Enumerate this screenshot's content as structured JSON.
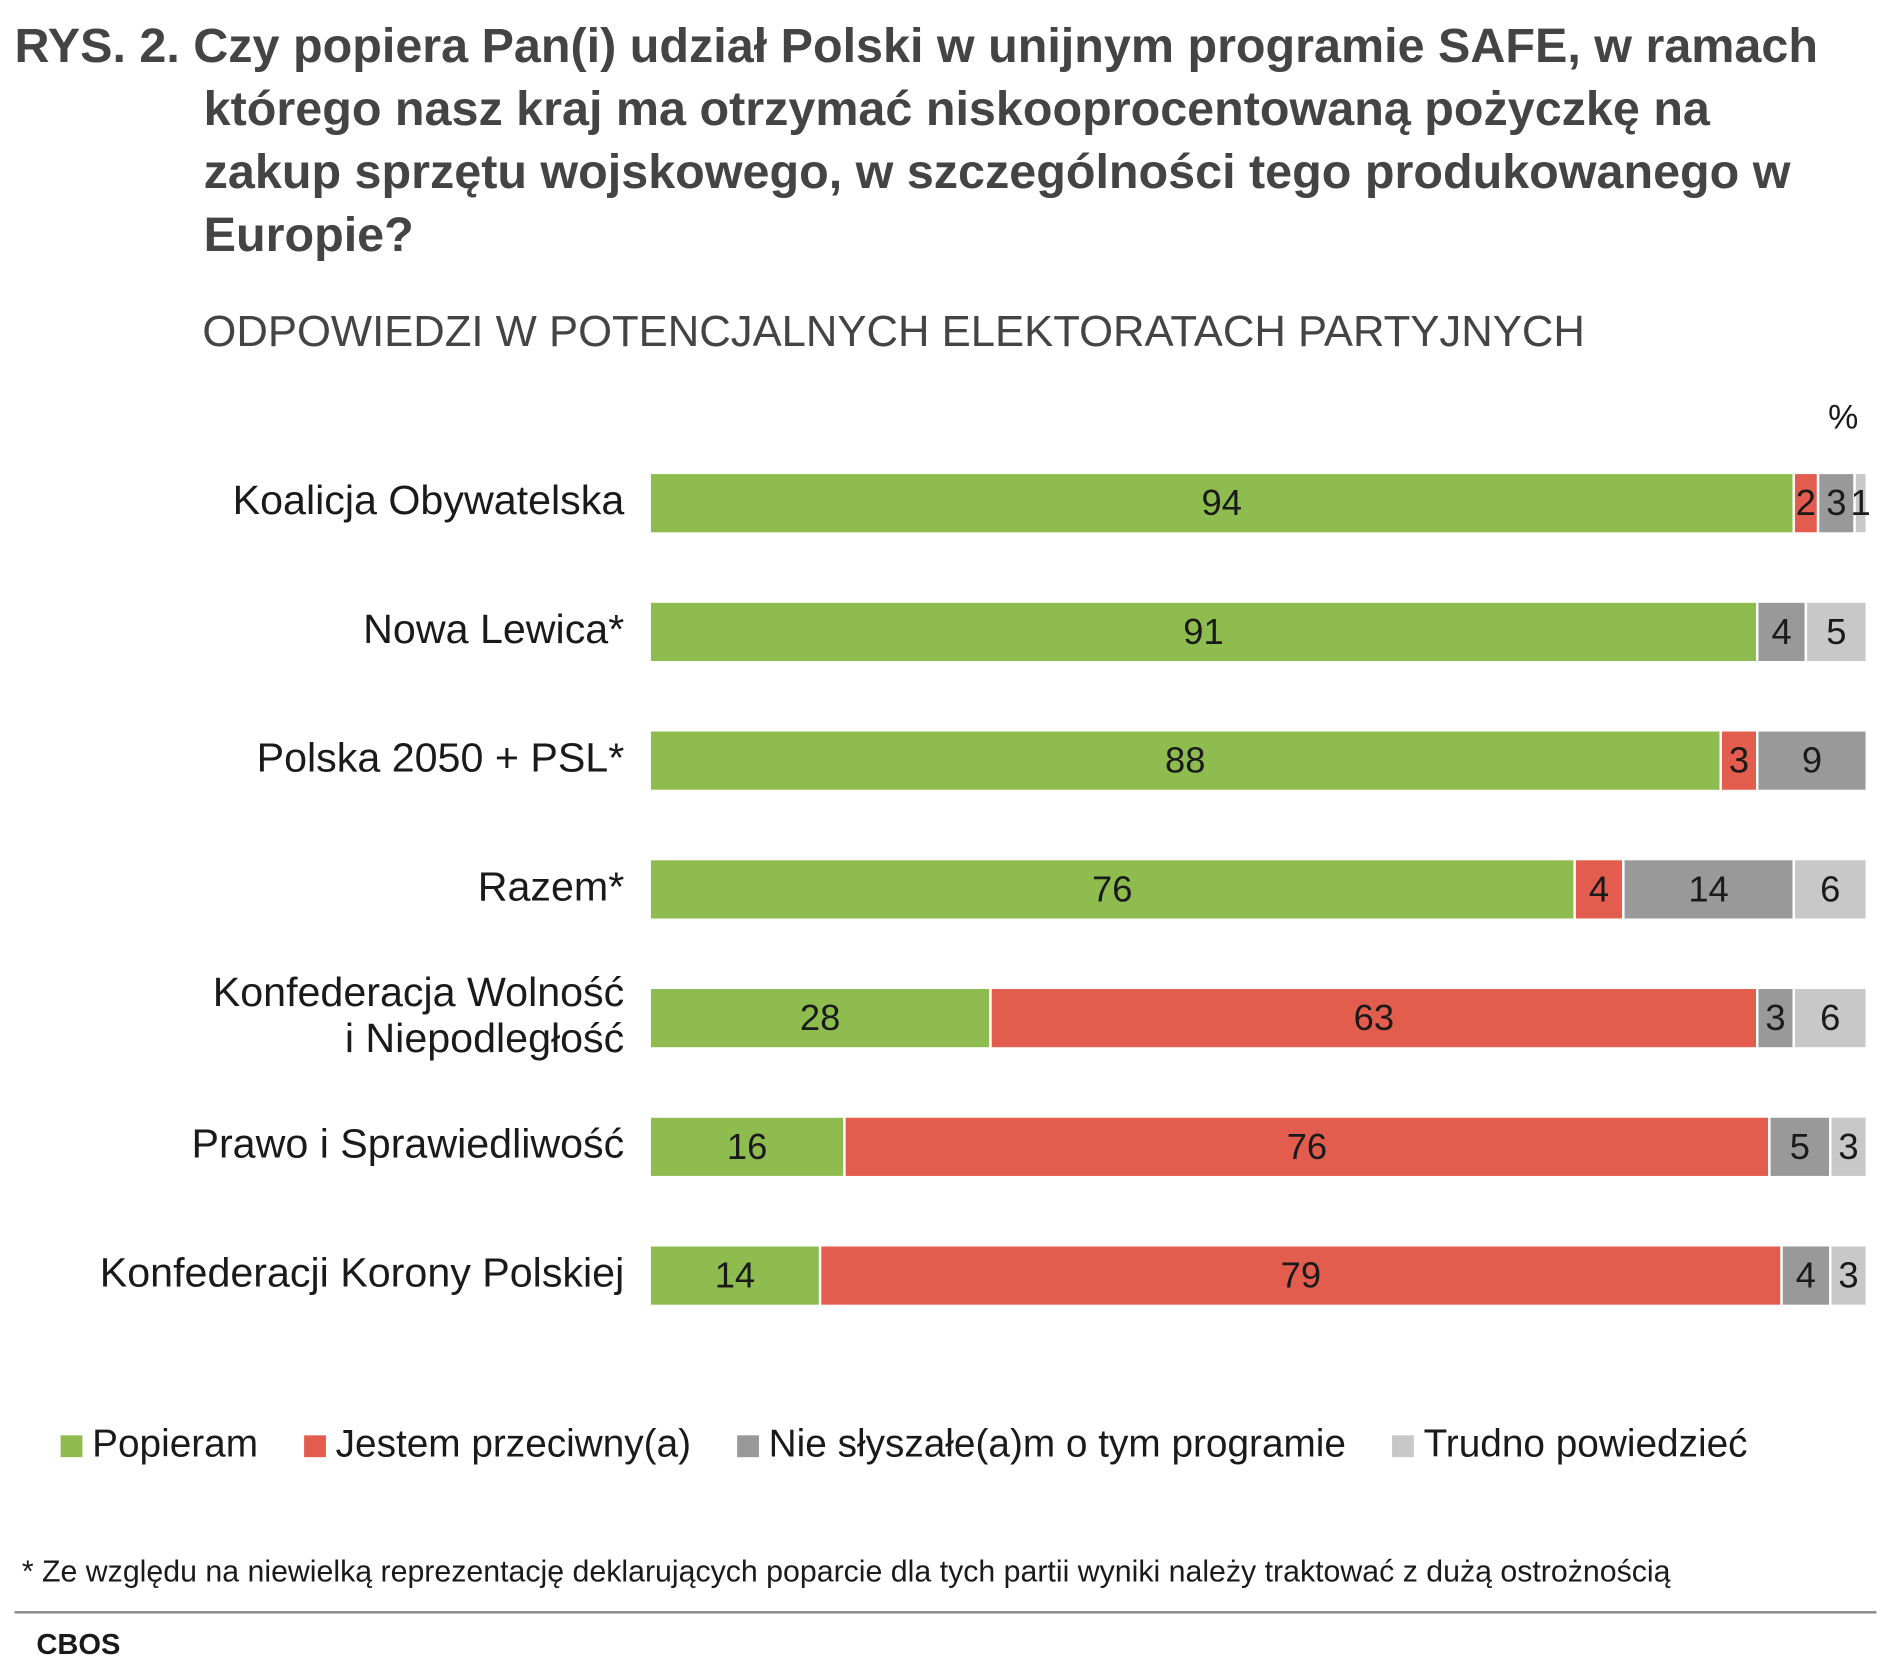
{
  "chart_data": {
    "type": "stacked-bar-horizontal",
    "title": "RYS. 2. Czy popiera Pan(i) udział Polski w unijnym programie SAFE, w ramach którego nasz kraj ma otrzymać niskooprocentowaną pożyczkę na zakup sprzętu wojskowego, w szczególności tego produkowanego w Europie?",
    "subtitle": "ODPOWIEDZI W POTENCJALNYCH ELEKTORATACH PARTYJNYCH",
    "unit_label": "%",
    "categories": [
      "Koalicja Obywatelska",
      "Nowa Lewica*",
      "Polska 2050 + PSL*",
      "Razem*",
      "Konfederacja Wolność\ni Niepodległość",
      "Prawo i Sprawiedliwość",
      "Konfederacji Korony Polskiej"
    ],
    "xlim": [
      0,
      100
    ],
    "series": [
      {
        "name": "Popieram",
        "color": "#8fbc4f",
        "values": [
          94,
          91,
          88,
          76,
          28,
          16,
          14
        ]
      },
      {
        "name": "Jestem przeciwny(a)",
        "color": "#e35d4f",
        "values": [
          2,
          null,
          3,
          4,
          63,
          76,
          79
        ]
      },
      {
        "name": "Nie słyszałe(a)m o tym programie",
        "color": "#999999",
        "values": [
          3,
          4,
          9,
          14,
          3,
          5,
          4
        ]
      },
      {
        "name": "Trudno powiedzieć",
        "color": "#c8c8c8",
        "values": [
          1,
          5,
          null,
          6,
          6,
          3,
          3
        ]
      }
    ],
    "legend": "bottom",
    "footnote": "* Ze względu na niewielką reprezentację deklarujących poparcie dla tych partii wyniki należy traktować z dużą ostrożnością",
    "source": "CBOS"
  }
}
